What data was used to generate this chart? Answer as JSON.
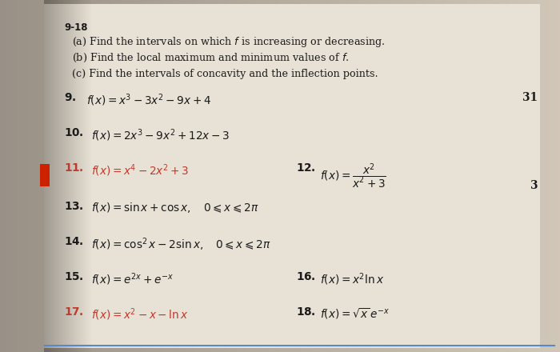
{
  "bg_left": "#a8a098",
  "bg_mid": "#c8c0b0",
  "bg_right": "#d0c8b8",
  "page_bg": "#e8e0d0",
  "title_section": "9-18",
  "side_number_31": "31",
  "side_number_3": "3",
  "red_color": "#c0392b",
  "dark_color": "#1a1a1a",
  "inst_lines": [
    "(a) Find the intervals on which $f$ is increasing or decreasing.",
    "(b) Find the local maximum and minimum values of $f$.",
    "(c) Find the intervals of concavity and the inflection points."
  ],
  "prob9": "$f(x) = x^3 - 3x^2 - 9x + 4$",
  "prob10": "$f(x) = 2x^3 - 9x^2 + 12x - 3$",
  "prob11": "$f(x) = x^4 - 2x^2 + 3$",
  "prob12": "$f(x) = \\dfrac{x^2}{x^2+3}$",
  "prob13": "$f(x) = \\sin x + \\cos x, \\quad 0 \\leqslant x \\leqslant 2\\pi$",
  "prob14": "$f(x) = \\cos^2 x - 2\\sin x, \\quad 0 \\leqslant x \\leqslant 2\\pi$",
  "prob15": "$f(x) = e^{2x} + e^{-x}$",
  "prob16": "$f(x) = x^2 \\ln x$",
  "prob17": "$f(x) = x^2 - x - \\ln x$",
  "prob18": "$f(x) = \\sqrt{x}\\,e^{-x}$"
}
